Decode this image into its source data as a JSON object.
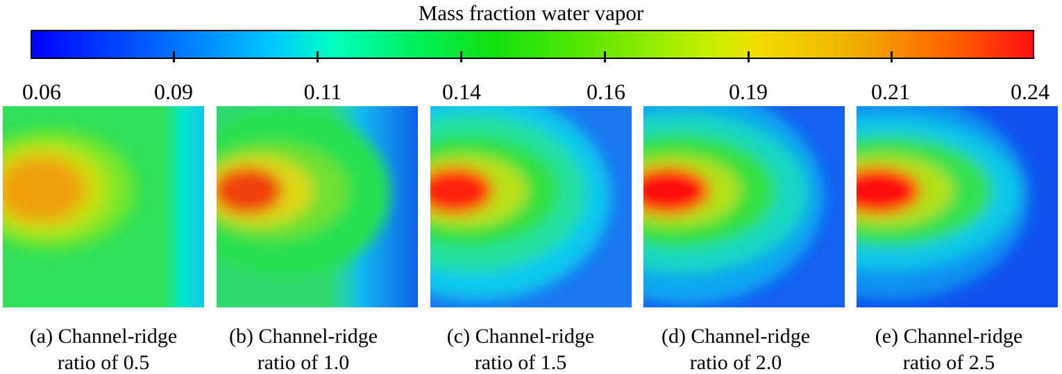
{
  "figure": {
    "colorbar": {
      "title": "Mass fraction water vapor",
      "tick_labels": [
        "0.06",
        "0.09",
        "0.11",
        "0.14",
        "0.16",
        "0.19",
        "0.21",
        "0.24"
      ],
      "min": 0.06,
      "max": 0.24,
      "colors": [
        "#0000ff",
        "#00c8ff",
        "#00f060",
        "#c8f000",
        "#ff1010"
      ]
    },
    "panels": [
      {
        "id": "a",
        "caption_line1": "(a) Channel-ridge",
        "caption_line2": "ratio of 0.5",
        "peak_color": "#f0a010"
      },
      {
        "id": "b",
        "caption_line1": "(b) Channel-ridge",
        "caption_line2": "ratio of 1.0",
        "peak_color": "#f04010"
      },
      {
        "id": "c",
        "caption_line1": "(c) Channel-ridge",
        "caption_line2": "ratio of 1.5",
        "peak_color": "#ff2010"
      },
      {
        "id": "d",
        "caption_line1": "(d) Channel-ridge",
        "caption_line2": "ratio of 2.0",
        "peak_color": "#ff1010"
      },
      {
        "id": "e",
        "caption_line1": "(e) Channel-ridge",
        "caption_line2": "ratio of 2.5",
        "peak_color": "#ff1010"
      }
    ]
  }
}
